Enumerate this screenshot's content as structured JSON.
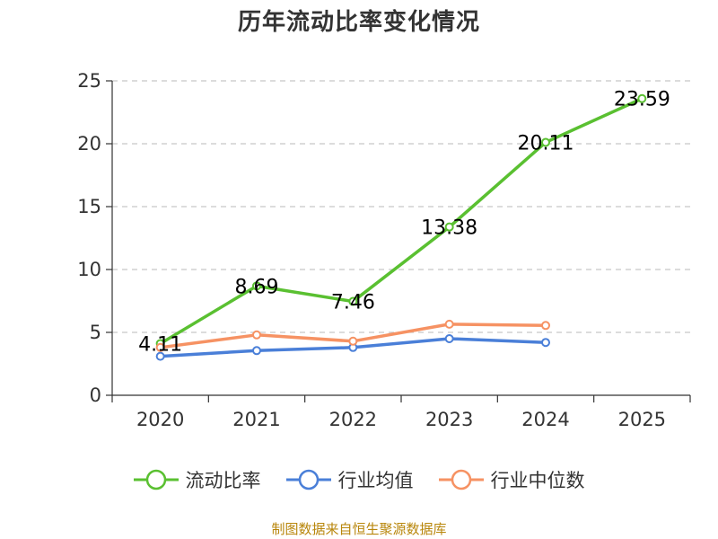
{
  "title": "历年流动比率变化情况",
  "source_note": "制图数据来自恒生聚源数据库",
  "chart_data": {
    "type": "line",
    "categories": [
      "2020",
      "2021",
      "2022",
      "2023",
      "2024",
      "2025"
    ],
    "ylim": [
      0,
      25
    ],
    "yticks": [
      0,
      5,
      10,
      15,
      20,
      25
    ],
    "grid": true,
    "legend_position": "bottom",
    "series": [
      {
        "name": "流动比率",
        "color": "#5ac031",
        "values": [
          4.11,
          8.69,
          7.46,
          13.38,
          20.11,
          23.59
        ],
        "labels": [
          "4.11",
          "8.69",
          "7.46",
          "13.38",
          "20.11",
          "23.59"
        ]
      },
      {
        "name": "行业均值",
        "color": "#4a7fd8",
        "values": [
          3.1,
          3.55,
          3.8,
          4.5,
          4.2,
          null
        ]
      },
      {
        "name": "行业中位数",
        "color": "#f69263",
        "values": [
          3.8,
          4.8,
          4.3,
          5.65,
          5.55,
          null
        ]
      }
    ]
  }
}
